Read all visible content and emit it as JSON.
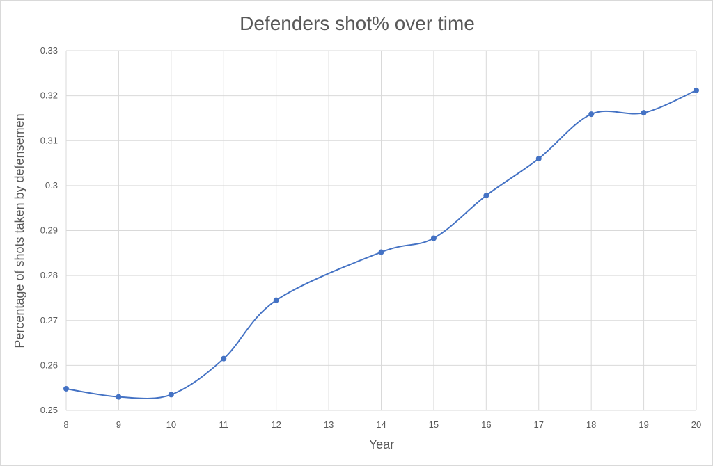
{
  "chart_data": {
    "type": "line",
    "title": "Defenders shot% over time",
    "xlabel": "Year",
    "ylabel": "Percentage of shots taken by defensemen",
    "x": [
      8,
      9,
      10,
      11,
      12,
      13,
      14,
      15,
      16,
      17,
      18,
      19,
      20
    ],
    "x_ticks": [
      "8",
      "9",
      "10",
      "11",
      "12",
      "13",
      "14",
      "15",
      "16",
      "17",
      "18",
      "19",
      "20"
    ],
    "y_ticks": [
      "0.25",
      "0.26",
      "0.27",
      "0.28",
      "0.29",
      "0.3",
      "0.31",
      "0.32",
      "0.33"
    ],
    "xlim": [
      8,
      20
    ],
    "ylim": [
      0.25,
      0.33
    ],
    "grid": true,
    "smooth": true,
    "series": [
      {
        "color": "#4472c4",
        "points": [
          {
            "x": 8,
            "y": 0.2548
          },
          {
            "x": 9,
            "y": 0.253
          },
          {
            "x": 10,
            "y": 0.2535
          },
          {
            "x": 11,
            "y": 0.2615
          },
          {
            "x": 12,
            "y": 0.2745
          },
          {
            "x": 14,
            "y": 0.2852
          },
          {
            "x": 15,
            "y": 0.2883
          },
          {
            "x": 16,
            "y": 0.2978
          },
          {
            "x": 17,
            "y": 0.306
          },
          {
            "x": 18,
            "y": 0.3159
          },
          {
            "x": 19,
            "y": 0.3162
          },
          {
            "x": 20,
            "y": 0.3212
          }
        ]
      }
    ]
  }
}
